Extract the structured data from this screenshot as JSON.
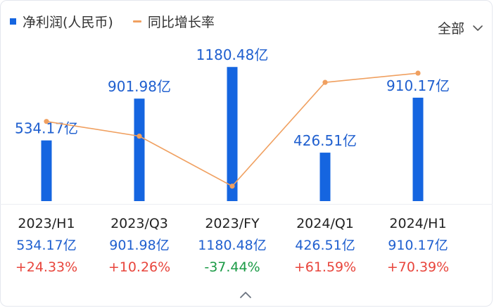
{
  "legend": {
    "bar_label": "净利润(人民币)",
    "line_label": "同比增长率",
    "bar_color": "#1565e0",
    "line_color": "#f0a060"
  },
  "filter": {
    "label": "全部",
    "icon": "chevron-down-icon"
  },
  "expand_icon": "chevron-up-icon",
  "chart_data": {
    "type": "bar",
    "categories": [
      "2023/H1",
      "2023/Q3",
      "2023/FY",
      "2024/Q1",
      "2024/H1"
    ],
    "series": [
      {
        "name": "净利润(人民币)",
        "type": "bar",
        "values": [
          534.17,
          901.98,
          1180.48,
          426.51,
          910.17
        ],
        "labels": [
          "534.17亿",
          "901.98亿",
          "1180.48亿",
          "426.51亿",
          "910.17亿"
        ]
      },
      {
        "name": "同比增长率",
        "type": "line",
        "values": [
          24.33,
          10.26,
          -37.44,
          61.59,
          70.39
        ],
        "labels": [
          "+24.33%",
          "+10.26%",
          "-37.44%",
          "+61.59%",
          "+70.39%"
        ]
      }
    ],
    "bar_ylim": [
      0,
      1250
    ],
    "line_ylim": [
      -45,
      110
    ],
    "grid": false,
    "legend_position": "top-left"
  }
}
